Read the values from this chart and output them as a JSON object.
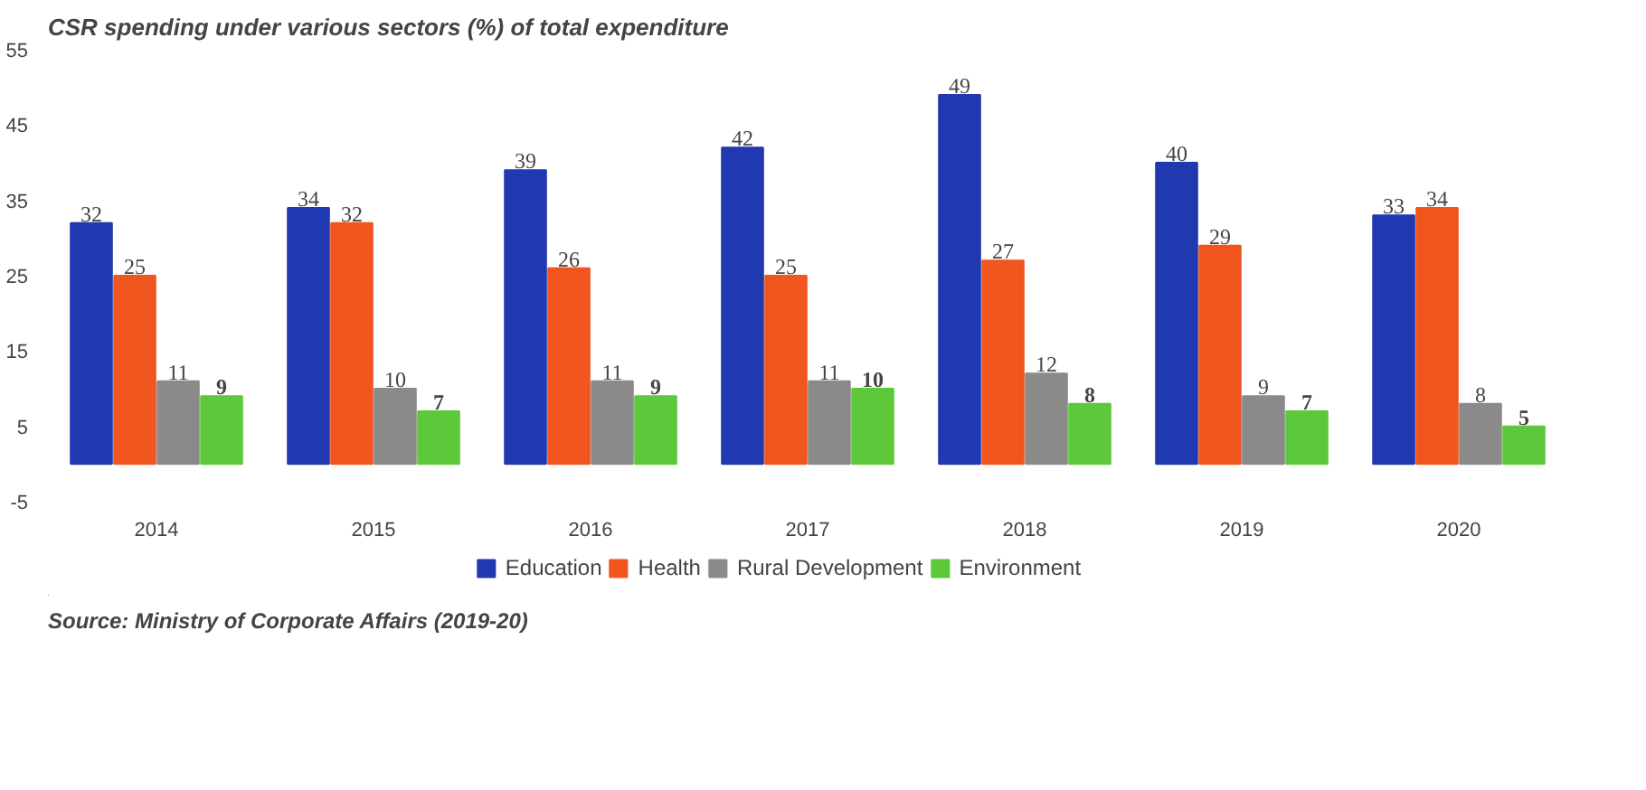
{
  "chart_data": {
    "type": "bar",
    "title": "CSR spending under various sectors (%) of total expenditure",
    "categories": [
      "2014",
      "2015",
      "2016",
      "2017",
      "2018",
      "2019",
      "2020"
    ],
    "series": [
      {
        "name": "Education",
        "color": "#2038b0",
        "values": [
          32,
          34,
          39,
          42,
          49,
          40,
          33
        ]
      },
      {
        "name": "Health",
        "color": "#f0561e",
        "values": [
          25,
          32,
          26,
          25,
          27,
          29,
          34
        ]
      },
      {
        "name": "Rural Development",
        "color": "#8a8a8a",
        "values": [
          11,
          10,
          11,
          11,
          12,
          9,
          8
        ]
      },
      {
        "name": "Environment",
        "color": "#5cc83a",
        "values": [
          9,
          7,
          9,
          10,
          8,
          7,
          5
        ]
      }
    ],
    "ylim": [
      -5,
      55
    ],
    "yticks": [
      -5,
      5,
      15,
      25,
      35,
      45,
      55
    ],
    "data_labels": true,
    "grid": false,
    "legend": "bottom",
    "annotations": [
      "Source: Ministry of Corporate Affairs (2019-20)"
    ]
  }
}
